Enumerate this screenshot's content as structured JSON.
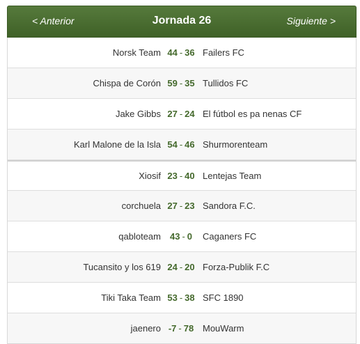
{
  "header": {
    "prev_label": "< Anterior",
    "title": "Jornada 26",
    "next_label": "Siguiente >"
  },
  "matches": [
    {
      "home": "Norsk Team",
      "home_score": "44",
      "away_score": "36",
      "away": "Failers FC"
    },
    {
      "home": "Chispa de Corón",
      "home_score": "59",
      "away_score": "35",
      "away": "Tullidos FC"
    },
    {
      "home": "Jake Gibbs",
      "home_score": "27",
      "away_score": "24",
      "away": "El fútbol es pa nenas CF"
    },
    {
      "home": "Karl Malone de la Isla",
      "home_score": "54",
      "away_score": "46",
      "away": "Shurmorenteam"
    },
    {
      "home": "Xiosif",
      "home_score": "23",
      "away_score": "40",
      "away": "Lentejas Team"
    },
    {
      "home": "corchuela",
      "home_score": "27",
      "away_score": "23",
      "away": "Sandora F.C."
    },
    {
      "home": "qabloteam",
      "home_score": "43",
      "away_score": "0",
      "away": "Caganers FC"
    },
    {
      "home": "Tucansito y los 619",
      "home_score": "24",
      "away_score": "20",
      "away": "Forza-Publik F.C"
    },
    {
      "home": "Tiki Taka Team",
      "home_score": "53",
      "away_score": "38",
      "away": "SFC 1890"
    },
    {
      "home": "jaenero",
      "home_score": "-7",
      "away_score": "78",
      "away": "MouWarm"
    }
  ],
  "score_separator": "-",
  "colors": {
    "header_bg": "#4a6d31",
    "score_green": "#44692c"
  }
}
